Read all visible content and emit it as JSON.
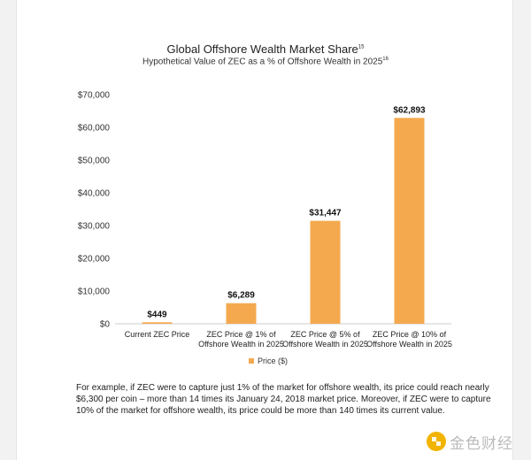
{
  "chart_data": {
    "type": "bar",
    "title": "Global Offshore Wealth Market Share",
    "title_note": "15",
    "subtitle": "Hypothetical Value of ZEC as a % of Offshore Wealth in 2025",
    "subtitle_note": "16",
    "categories": [
      [
        "Current ZEC Price"
      ],
      [
        "ZEC Price @ 1% of",
        "Offshore Wealth in 2025"
      ],
      [
        "ZEC Price @ 5% of",
        "Offshore Wealth in 2025"
      ],
      [
        "ZEC Price @ 10% of",
        "Offshore Wealth in 2025"
      ]
    ],
    "series": [
      {
        "name": "Price  ($)",
        "values": [
          449,
          6289,
          31447,
          62893
        ],
        "color": "#f4a94e"
      }
    ],
    "data_labels": [
      "$449",
      "$6,289",
      "$31,447",
      "$62,893"
    ],
    "y_ticks": [
      0,
      10000,
      20000,
      30000,
      40000,
      50000,
      60000,
      70000
    ],
    "y_tick_labels": [
      "$0",
      "$10,000",
      "$20,000",
      "$30,000",
      "$40,000",
      "$50,000",
      "$60,000",
      "$70,000"
    ],
    "ylim": [
      0,
      70000
    ],
    "grid": false,
    "legend_position": "bottom-center",
    "xlabel": "",
    "ylabel": ""
  },
  "caption": "For example, if ZEC were to capture just 1% of the market for offshore wealth, its price could reach nearly $6,300 per coin – more than 14 times its January 24, 2018 market price. Moreover, if ZEC were to capture 10% of the market for offshore wealth, its price could be more than 140 times its current value.",
  "watermark": {
    "text": "金色财经",
    "icon": "gold-finance-logo-icon",
    "color": "#f1b400"
  }
}
